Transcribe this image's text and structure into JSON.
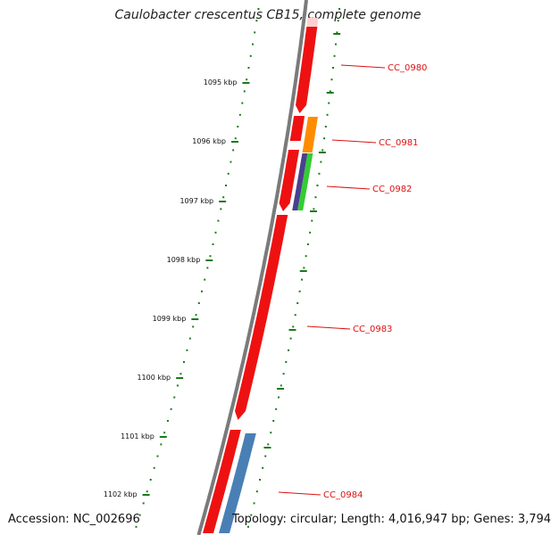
{
  "title": "Caulobacter crescentus CB15, complete genome",
  "footer": {
    "accession": "Accession: NC_002696",
    "stats": "Topology: circular; Length: 4,016,947 bp; Genes: 3,794"
  },
  "colors": {
    "backbone": "#7a7a7a",
    "ticks": "#1a7a1a",
    "gene_forward": "#ee1111",
    "gene_label": "#dd1111",
    "cds_orange": "#ff8c00",
    "cds_purple": "#4b3f8f",
    "cds_green": "#33cc33",
    "cds_blue": "#4a7fb5"
  },
  "scale": {
    "unit": "kbp",
    "labels": [
      "1095 kbp",
      "1096 kbp",
      "1097 kbp",
      "1098 kbp",
      "1099 kbp",
      "1100 kbp",
      "1101 kbp",
      "1102 kbp"
    ]
  },
  "genes": [
    {
      "id": "CC_0980",
      "label": "CC_0980"
    },
    {
      "id": "CC_0981",
      "label": "CC_0981"
    },
    {
      "id": "CC_0982",
      "label": "CC_0982"
    },
    {
      "id": "CC_0983",
      "label": "CC_0983"
    },
    {
      "id": "CC_0984",
      "label": "CC_0984"
    }
  ]
}
